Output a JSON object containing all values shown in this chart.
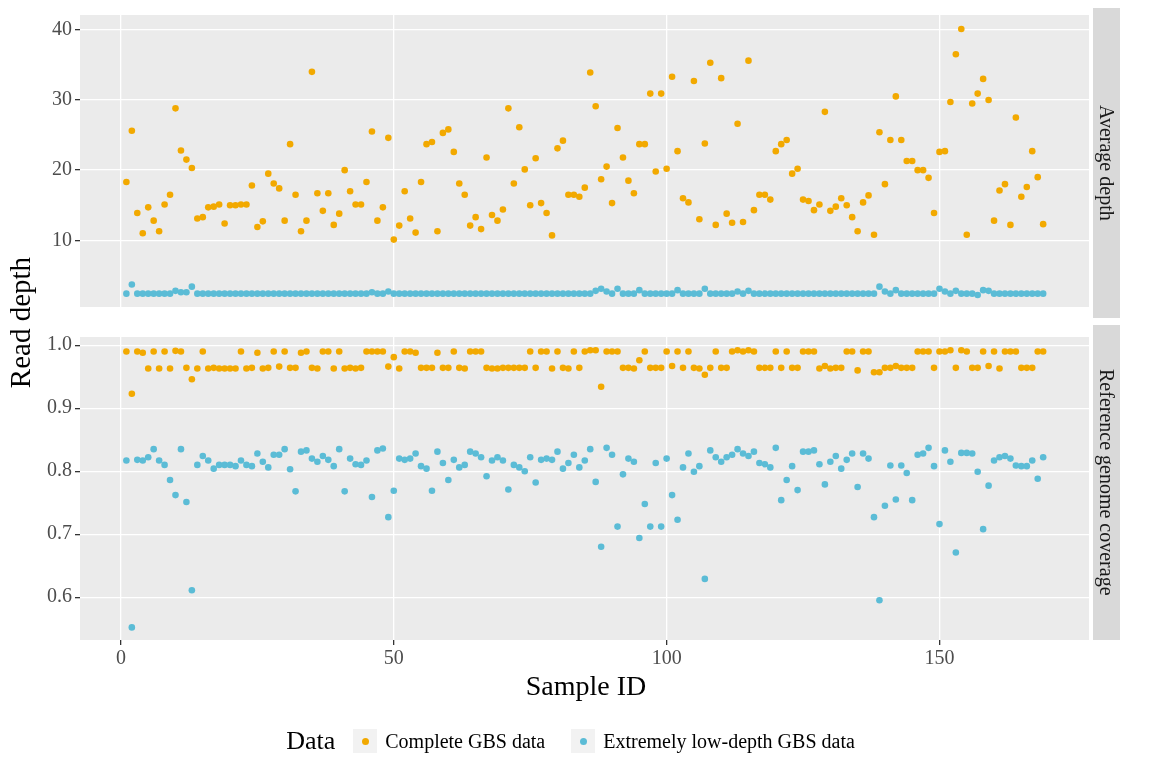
{
  "chart_data": [
    {
      "type": "scatter",
      "title": "Average depth",
      "ylabel": "Read depth",
      "marker": "circle",
      "grid": true,
      "legend": false,
      "tick_labels": "y",
      "x": [
        1,
        2,
        3,
        4,
        5,
        6,
        7,
        8,
        9,
        10,
        11,
        12,
        13,
        14,
        15,
        16,
        17,
        18,
        19,
        20,
        21,
        22,
        23,
        24,
        25,
        26,
        27,
        28,
        29,
        30,
        31,
        32,
        33,
        34,
        35,
        36,
        37,
        38,
        39,
        40,
        41,
        42,
        43,
        44,
        45,
        46,
        47,
        48,
        49,
        50,
        51,
        52,
        53,
        54,
        55,
        56,
        57,
        58,
        59,
        60,
        61,
        62,
        63,
        64,
        65,
        66,
        67,
        68,
        69,
        70,
        71,
        72,
        73,
        74,
        75,
        76,
        77,
        78,
        79,
        80,
        81,
        82,
        83,
        84,
        85,
        86,
        87,
        88,
        89,
        90,
        91,
        92,
        93,
        94,
        95,
        96,
        97,
        98,
        99,
        100,
        101,
        102,
        103,
        104,
        105,
        106,
        107,
        108,
        109,
        110,
        111,
        112,
        113,
        114,
        115,
        116,
        117,
        118,
        119,
        120,
        121,
        122,
        123,
        124,
        125,
        126,
        127,
        128,
        129,
        130,
        131,
        132,
        133,
        134,
        135,
        136,
        137,
        138,
        139,
        140,
        141,
        142,
        143,
        144,
        145,
        146,
        147,
        148,
        149,
        150,
        151,
        152,
        153,
        154,
        155,
        156,
        157,
        158,
        159,
        160,
        161,
        162,
        163,
        164,
        165,
        166,
        167,
        168,
        169
      ],
      "xlim": [
        -7.5,
        177.4
      ],
      "xticks": [
        0,
        50,
        100,
        150
      ],
      "ylim": [
        0.5,
        42.1
      ],
      "yticks": [
        10,
        20,
        30,
        40
      ],
      "series": [
        {
          "color": "#f2a900",
          "values": [
            18.3,
            25.6,
            13.9,
            11.0,
            14.7,
            12.8,
            11.3,
            15.1,
            16.5,
            28.8,
            22.8,
            21.5,
            20.3,
            13.1,
            13.3,
            14.7,
            14.8,
            15.1,
            12.4,
            15.0,
            15.0,
            15.1,
            15.1,
            17.8,
            11.9,
            12.7,
            19.5,
            18.1,
            17.4,
            12.8,
            23.7,
            16.5,
            11.3,
            12.8,
            34.0,
            16.7,
            14.2,
            16.7,
            12.2,
            13.8,
            20.0,
            17.0,
            15.1,
            15.1,
            18.3,
            25.5,
            12.8,
            14.7,
            24.6,
            10.1,
            12.1,
            17.0,
            13.1,
            11.1,
            18.3,
            23.7,
            24.0,
            11.3,
            25.3,
            25.8,
            22.6,
            18.1,
            16.5,
            12.1,
            13.3,
            11.6,
            21.8,
            13.6,
            12.8,
            14.4,
            28.8,
            18.1,
            26.1,
            20.1,
            15.0,
            21.7,
            15.3,
            13.9,
            10.7,
            23.1,
            24.2,
            16.5,
            16.5,
            16.2,
            17.5,
            33.9,
            29.1,
            18.7,
            20.5,
            15.3,
            26.0,
            21.8,
            18.5,
            16.7,
            23.7,
            23.7,
            30.9,
            19.8,
            30.9,
            20.2,
            33.3,
            22.7,
            16.0,
            15.4,
            32.7,
            13.0,
            23.8,
            35.3,
            12.2,
            33.1,
            13.8,
            12.5,
            26.6,
            12.6,
            35.6,
            14.3,
            16.5,
            16.5,
            15.8,
            22.7,
            23.7,
            24.3,
            19.5,
            20.2,
            15.8,
            15.6,
            14.3,
            15.1,
            28.3,
            14.2,
            14.8,
            16.0,
            15.0,
            13.3,
            11.3,
            15.4,
            16.4,
            10.8,
            25.4,
            18.0,
            24.3,
            30.5,
            24.3,
            21.3,
            21.3,
            20.0,
            20.0,
            18.9,
            13.9,
            22.6,
            22.7,
            29.7,
            36.5,
            40.1,
            10.8,
            29.5,
            30.9,
            33.0,
            30.0,
            12.8,
            17.1,
            18.0,
            12.2,
            27.5,
            16.2,
            17.6,
            22.7,
            19.0,
            12.3
          ]
        },
        {
          "color": "#5bbcd6",
          "values": [
            2.4,
            3.7,
            2.4,
            2.4,
            2.4,
            2.4,
            2.4,
            2.4,
            2.4,
            2.8,
            2.6,
            2.6,
            3.4,
            2.4,
            2.4,
            2.4,
            2.4,
            2.4,
            2.4,
            2.4,
            2.4,
            2.4,
            2.4,
            2.4,
            2.4,
            2.4,
            2.4,
            2.4,
            2.4,
            2.4,
            2.4,
            2.4,
            2.4,
            2.4,
            2.4,
            2.4,
            2.4,
            2.4,
            2.4,
            2.4,
            2.4,
            2.4,
            2.4,
            2.4,
            2.4,
            2.6,
            2.4,
            2.4,
            2.7,
            2.4,
            2.4,
            2.4,
            2.4,
            2.4,
            2.4,
            2.4,
            2.4,
            2.4,
            2.4,
            2.4,
            2.4,
            2.4,
            2.4,
            2.4,
            2.4,
            2.4,
            2.4,
            2.4,
            2.4,
            2.4,
            2.4,
            2.4,
            2.4,
            2.4,
            2.4,
            2.4,
            2.4,
            2.4,
            2.4,
            2.4,
            2.4,
            2.4,
            2.4,
            2.4,
            2.4,
            2.4,
            2.8,
            3.1,
            2.7,
            2.4,
            3.1,
            2.4,
            2.4,
            2.4,
            2.9,
            2.4,
            2.4,
            2.4,
            2.4,
            2.4,
            2.4,
            2.9,
            2.4,
            2.4,
            2.4,
            2.4,
            3.1,
            2.4,
            2.4,
            2.4,
            2.4,
            2.4,
            2.7,
            2.4,
            2.8,
            2.4,
            2.4,
            2.4,
            2.4,
            2.4,
            2.4,
            2.4,
            2.4,
            2.4,
            2.4,
            2.4,
            2.4,
            2.4,
            2.4,
            2.4,
            2.4,
            2.4,
            2.4,
            2.4,
            2.4,
            2.4,
            2.4,
            2.4,
            3.4,
            2.7,
            2.4,
            2.9,
            2.4,
            2.4,
            2.4,
            2.4,
            2.4,
            2.4,
            2.4,
            3.1,
            2.7,
            2.4,
            2.8,
            2.4,
            2.4,
            2.4,
            2.2,
            2.9,
            2.8,
            2.4,
            2.4,
            2.4,
            2.4,
            2.4,
            2.4,
            2.4,
            2.4,
            2.4,
            2.4
          ]
        }
      ]
    },
    {
      "type": "scatter",
      "title": "Reference genome coverage",
      "xlabel": "Sample ID",
      "marker": "circle",
      "grid": true,
      "legend": "bottom",
      "legend_title": "Data",
      "x": [
        1,
        2,
        3,
        4,
        5,
        6,
        7,
        8,
        9,
        10,
        11,
        12,
        13,
        14,
        15,
        16,
        17,
        18,
        19,
        20,
        21,
        22,
        23,
        24,
        25,
        26,
        27,
        28,
        29,
        30,
        31,
        32,
        33,
        34,
        35,
        36,
        37,
        38,
        39,
        40,
        41,
        42,
        43,
        44,
        45,
        46,
        47,
        48,
        49,
        50,
        51,
        52,
        53,
        54,
        55,
        56,
        57,
        58,
        59,
        60,
        61,
        62,
        63,
        64,
        65,
        66,
        67,
        68,
        69,
        70,
        71,
        72,
        73,
        74,
        75,
        76,
        77,
        78,
        79,
        80,
        81,
        82,
        83,
        84,
        85,
        86,
        87,
        88,
        89,
        90,
        91,
        92,
        93,
        94,
        95,
        96,
        97,
        98,
        99,
        100,
        101,
        102,
        103,
        104,
        105,
        106,
        107,
        108,
        109,
        110,
        111,
        112,
        113,
        114,
        115,
        116,
        117,
        118,
        119,
        120,
        121,
        122,
        123,
        124,
        125,
        126,
        127,
        128,
        129,
        130,
        131,
        132,
        133,
        134,
        135,
        136,
        137,
        138,
        139,
        140,
        141,
        142,
        143,
        144,
        145,
        146,
        147,
        148,
        149,
        150,
        151,
        152,
        153,
        154,
        155,
        156,
        157,
        158,
        159,
        160,
        161,
        162,
        163,
        164,
        165,
        166,
        167,
        168,
        169
      ],
      "xlim": [
        -7.5,
        177.4
      ],
      "xticks": [
        0,
        50,
        100,
        150
      ],
      "ylim": [
        0.532,
        1.013
      ],
      "yticks": [
        {
          "value": 0.6,
          "label": "0.6"
        },
        {
          "value": 0.7,
          "label": "0.7"
        },
        {
          "value": 0.8,
          "label": "0.8"
        },
        {
          "value": 0.9,
          "label": "0.9"
        },
        {
          "value": 1,
          "label": "1.0"
        }
      ],
      "series": [
        {
          "name": "Complete GBS data",
          "color": "#f2a900",
          "values": [
            0.99,
            0.923,
            0.99,
            0.988,
            0.963,
            0.99,
            0.963,
            0.99,
            0.963,
            0.991,
            0.99,
            0.964,
            0.946,
            0.963,
            0.99,
            0.963,
            0.964,
            0.963,
            0.963,
            0.963,
            0.963,
            0.99,
            0.963,
            0.964,
            0.988,
            0.963,
            0.964,
            0.99,
            0.966,
            0.99,
            0.964,
            0.964,
            0.988,
            0.99,
            0.964,
            0.963,
            0.99,
            0.99,
            0.963,
            0.99,
            0.963,
            0.964,
            0.963,
            0.964,
            0.99,
            0.99,
            0.99,
            0.99,
            0.966,
            0.981,
            0.963,
            0.99,
            0.99,
            0.988,
            0.964,
            0.964,
            0.964,
            0.988,
            0.964,
            0.964,
            0.99,
            0.964,
            0.963,
            0.99,
            0.99,
            0.99,
            0.964,
            0.963,
            0.963,
            0.964,
            0.964,
            0.964,
            0.964,
            0.964,
            0.99,
            0.964,
            0.99,
            0.99,
            0.963,
            0.99,
            0.964,
            0.963,
            0.99,
            0.964,
            0.99,
            0.992,
            0.992,
            0.934,
            0.99,
            0.99,
            0.99,
            0.964,
            0.964,
            0.963,
            0.976,
            0.99,
            0.964,
            0.964,
            0.964,
            0.99,
            0.967,
            0.99,
            0.964,
            0.99,
            0.964,
            0.963,
            0.953,
            0.964,
            0.99,
            0.964,
            0.964,
            0.99,
            0.992,
            0.99,
            0.992,
            0.99,
            0.964,
            0.964,
            0.964,
            0.99,
            0.964,
            0.99,
            0.964,
            0.964,
            0.99,
            0.99,
            0.99,
            0.963,
            0.967,
            0.963,
            0.964,
            0.964,
            0.99,
            0.99,
            0.96,
            0.99,
            0.99,
            0.957,
            0.957,
            0.964,
            0.964,
            0.967,
            0.964,
            0.964,
            0.964,
            0.99,
            0.99,
            0.99,
            0.964,
            0.99,
            0.99,
            0.992,
            0.964,
            0.992,
            0.99,
            0.964,
            0.964,
            0.99,
            0.967,
            0.99,
            0.963,
            0.99,
            0.99,
            0.99,
            0.964,
            0.964,
            0.964,
            0.99,
            0.99
          ]
        },
        {
          "name": "Extremely low-depth GBS data",
          "color": "#5bbcd6",
          "values": [
            0.817,
            0.552,
            0.818,
            0.817,
            0.822,
            0.835,
            0.817,
            0.81,
            0.786,
            0.762,
            0.835,
            0.751,
            0.611,
            0.81,
            0.824,
            0.817,
            0.804,
            0.81,
            0.81,
            0.81,
            0.808,
            0.817,
            0.81,
            0.808,
            0.828,
            0.815,
            0.806,
            0.826,
            0.826,
            0.835,
            0.803,
            0.768,
            0.831,
            0.833,
            0.82,
            0.815,
            0.824,
            0.818,
            0.808,
            0.835,
            0.768,
            0.82,
            0.811,
            0.81,
            0.817,
            0.759,
            0.833,
            0.836,
            0.727,
            0.769,
            0.82,
            0.818,
            0.82,
            0.828,
            0.808,
            0.804,
            0.769,
            0.831,
            0.813,
            0.786,
            0.818,
            0.806,
            0.81,
            0.831,
            0.828,
            0.822,
            0.792,
            0.817,
            0.822,
            0.817,
            0.771,
            0.81,
            0.806,
            0.8,
            0.822,
            0.782,
            0.818,
            0.82,
            0.818,
            0.831,
            0.804,
            0.813,
            0.826,
            0.806,
            0.817,
            0.835,
            0.783,
            0.68,
            0.837,
            0.826,
            0.712,
            0.795,
            0.82,
            0.815,
            0.694,
            0.748,
            0.712,
            0.813,
            0.712,
            0.82,
            0.762,
            0.723,
            0.806,
            0.828,
            0.799,
            0.808,
            0.629,
            0.833,
            0.822,
            0.815,
            0.822,
            0.826,
            0.835,
            0.828,
            0.824,
            0.831,
            0.813,
            0.811,
            0.806,
            0.837,
            0.754,
            0.786,
            0.808,
            0.77,
            0.831,
            0.831,
            0.833,
            0.811,
            0.779,
            0.815,
            0.824,
            0.804,
            0.818,
            0.828,
            0.775,
            0.828,
            0.82,
            0.727,
            0.595,
            0.745,
            0.809,
            0.755,
            0.809,
            0.797,
            0.754,
            0.826,
            0.828,
            0.837,
            0.808,
            0.716,
            0.833,
            0.815,
            0.671,
            0.829,
            0.829,
            0.828,
            0.799,
            0.708,
            0.777,
            0.817,
            0.822,
            0.824,
            0.82,
            0.809,
            0.808,
            0.808,
            0.817,
            0.788,
            0.822
          ]
        }
      ]
    }
  ]
}
